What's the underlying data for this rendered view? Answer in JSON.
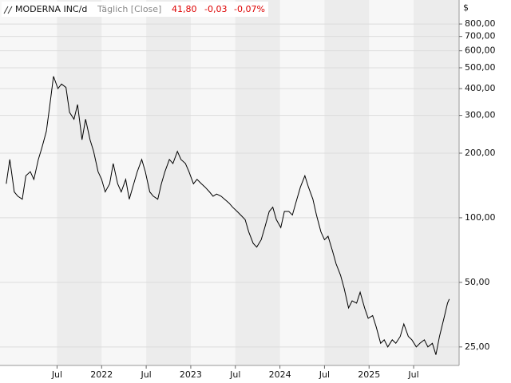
{
  "chart_data": {
    "type": "line",
    "title": "MODERNA INC/d",
    "subtitle": "Täglich [Close]",
    "last_price": "41,80",
    "change": "-0,03",
    "change_pct": "-0,07%",
    "currency": "$",
    "x": [
      2020.93,
      2020.97,
      2021.02,
      2021.06,
      2021.11,
      2021.15,
      2021.2,
      2021.24,
      2021.29,
      2021.33,
      2021.38,
      2021.42,
      2021.46,
      2021.51,
      2021.55,
      2021.6,
      2021.64,
      2021.69,
      2021.73,
      2021.78,
      2021.82,
      2021.87,
      2021.91,
      2021.96,
      2022.0,
      2022.04,
      2022.09,
      2022.13,
      2022.18,
      2022.22,
      2022.27,
      2022.31,
      2022.36,
      2022.4,
      2022.45,
      2022.49,
      2022.54,
      2022.58,
      2022.63,
      2022.67,
      2022.71,
      2022.76,
      2022.8,
      2022.85,
      2022.89,
      2022.94,
      2022.98,
      2023.03,
      2023.07,
      2023.12,
      2023.16,
      2023.21,
      2023.25,
      2023.29,
      2023.34,
      2023.38,
      2023.43,
      2023.47,
      2023.52,
      2023.56,
      2023.61,
      2023.65,
      2023.7,
      2023.74,
      2023.79,
      2023.83,
      2023.88,
      2023.92,
      2023.96,
      2024.01,
      2024.05,
      2024.1,
      2024.14,
      2024.19,
      2024.23,
      2024.28,
      2024.32,
      2024.37,
      2024.41,
      2024.46,
      2024.5,
      2024.54,
      2024.59,
      2024.63,
      2024.68,
      2024.72,
      2024.77,
      2024.81,
      2024.86,
      2024.9,
      2024.95,
      2024.99,
      2025.04,
      2025.08,
      2025.13,
      2025.17,
      2025.21,
      2025.26,
      2025.3,
      2025.35,
      2025.39,
      2025.44,
      2025.48,
      2025.53,
      2025.57,
      2025.62,
      2025.66,
      2025.71,
      2025.75,
      2025.79,
      2025.84,
      2025.88,
      2025.9
    ],
    "series": [
      {
        "name": "MODERNA INC/d",
        "color": "#000000",
        "values": [
          144,
          187,
          132,
          126,
          122,
          157,
          164,
          151,
          187,
          212,
          253,
          337,
          456,
          400,
          420,
          405,
          310,
          288,
          337,
          231,
          288,
          231,
          204,
          164,
          151,
          132,
          144,
          179,
          144,
          132,
          151,
          122,
          144,
          164,
          187,
          164,
          132,
          126,
          122,
          144,
          164,
          187,
          179,
          204,
          187,
          179,
          164,
          144,
          151,
          144,
          139,
          132,
          126,
          129,
          126,
          122,
          117,
          112,
          107,
          103,
          98,
          86,
          76,
          73,
          79,
          90,
          107,
          112,
          98,
          90,
          107,
          107,
          103,
          122,
          139,
          157,
          139,
          122,
          103,
          86,
          79,
          82,
          70,
          61,
          54,
          47,
          38,
          41,
          40,
          45,
          38,
          34,
          35,
          31,
          26,
          27,
          25,
          27,
          26,
          28,
          32,
          28,
          27,
          25,
          26,
          27,
          25,
          26,
          23,
          28,
          34,
          40,
          41.8
        ]
      }
    ],
    "xlim": [
      2020.86,
      2026.01
    ],
    "xticks": [
      {
        "value": 2021.5,
        "label": "Jul"
      },
      2022,
      {
        "value": 2022.5,
        "label": "Jul"
      },
      2023,
      {
        "value": 2023.5,
        "label": "Jul"
      },
      2024,
      {
        "value": 2024.5,
        "label": "Jul"
      },
      2025,
      {
        "value": 2025.5,
        "label": "Jul"
      }
    ],
    "ylim": [
      20.5,
      1035
    ],
    "log_scale": true,
    "grid": true,
    "yticks": [
      {
        "value": 25,
        "label": "25,00"
      },
      {
        "value": 50,
        "label": "50,00"
      },
      {
        "value": 100,
        "label": "100,00"
      },
      {
        "value": 200,
        "label": "200,00"
      },
      {
        "value": 300,
        "label": "300,00"
      },
      {
        "value": 400,
        "label": "400,00"
      },
      {
        "value": 500,
        "label": "500,00"
      },
      {
        "value": 600,
        "label": "600,00"
      },
      {
        "value": 700,
        "label": "700,00"
      },
      {
        "value": 800,
        "label": "800,00"
      }
    ]
  }
}
